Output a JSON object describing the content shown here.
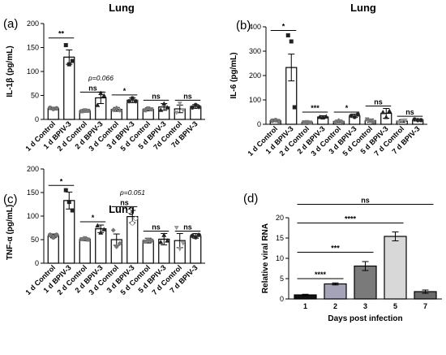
{
  "chart_data": [
    {
      "id": "a",
      "panel_label": "(a)",
      "type": "bar",
      "title": "Lung",
      "ylabel": "IL-1β (pg/mL)",
      "ylim": [
        0,
        200
      ],
      "yticks": [
        0,
        50,
        100,
        150,
        200
      ],
      "categories": [
        "1 d Control",
        "1 d BPIV-3",
        "2 d Control",
        "2 d BPIV-3",
        "3 d Control",
        "3 d BPIV-3",
        "5 d Control",
        "5 d BPIV-3",
        "7d Control",
        "7d BPIV-3"
      ],
      "values": [
        23,
        130,
        18,
        45,
        21,
        40,
        21,
        26,
        22,
        27
      ],
      "errors": [
        2,
        15,
        3,
        12,
        4,
        5,
        3,
        7,
        8,
        4
      ],
      "points": [
        [
          24,
          22,
          23
        ],
        [
          155,
          115,
          122
        ],
        [
          17,
          19,
          18
        ],
        [
          30,
          55,
          50
        ],
        [
          20,
          24,
          19
        ],
        [
          38,
          44,
          38
        ],
        [
          19,
          23,
          21
        ],
        [
          20,
          33,
          25
        ],
        [
          14,
          33,
          19
        ],
        [
          25,
          30,
          26
        ]
      ],
      "comparisons": [
        {
          "from": 0,
          "to": 1,
          "label": "**",
          "y": 170
        },
        {
          "from": 2,
          "to": 3,
          "label": "ns",
          "y": 57
        },
        {
          "from": 2,
          "to": 3,
          "label": "p=0.066",
          "y": 78
        },
        {
          "from": 4,
          "to": 5,
          "label": "*",
          "y": 51
        },
        {
          "from": 6,
          "to": 7,
          "label": "ns",
          "y": 40
        },
        {
          "from": 8,
          "to": 9,
          "label": "ns",
          "y": 40
        }
      ]
    },
    {
      "id": "b",
      "panel_label": "(b)",
      "type": "bar",
      "title": "Lung",
      "ylabel": "IL-6 (pg/mL)",
      "ylim": [
        0,
        400
      ],
      "yticks": [
        0,
        100,
        200,
        300,
        400
      ],
      "categories": [
        "1 d Control",
        "1 d BPIV-3",
        "2 d Control",
        "2 d BPIV-3",
        "3 d Control",
        "3 d BPIV-3",
        "5 d Control",
        "5 d BPIV-3",
        "7 d Control",
        "7 d BPIV-3"
      ],
      "values": [
        15,
        233,
        8,
        30,
        12,
        35,
        15,
        45,
        13,
        18
      ],
      "errors": [
        3,
        55,
        2,
        5,
        5,
        7,
        7,
        20,
        5,
        4
      ],
      "points": [
        [
          15,
          17,
          13
        ],
        [
          365,
          340,
          70
        ],
        [
          8,
          9,
          7
        ],
        [
          30,
          28,
          32
        ],
        [
          10,
          16,
          10
        ],
        [
          35,
          30,
          40
        ],
        [
          20,
          15,
          10
        ],
        [
          50,
          30,
          55
        ],
        [
          8,
          15,
          16
        ],
        [
          20,
          17,
          17
        ]
      ],
      "comparisons": [
        {
          "from": 0,
          "to": 1,
          "label": "*",
          "y": 385
        },
        {
          "from": 2,
          "to": 3,
          "label": "***",
          "y": 50
        },
        {
          "from": 4,
          "to": 5,
          "label": "*",
          "y": 50
        },
        {
          "from": 6,
          "to": 7,
          "label": "ns",
          "y": 75
        },
        {
          "from": 8,
          "to": 9,
          "label": "ns",
          "y": 33
        }
      ]
    },
    {
      "id": "c",
      "panel_label": "(c)",
      "type": "bar",
      "title": "Lung",
      "ylabel": "TNF-α (pg/mL)",
      "ylim": [
        0,
        200
      ],
      "yticks": [
        0,
        50,
        100,
        150,
        200
      ],
      "categories": [
        "1 d Control",
        "1 d BPIV-3",
        "2 d Control",
        "2 d BPIV-3",
        "3 d Control",
        "3 d BPIV-3",
        "5 d Control",
        "5 d BPIV-3",
        "7 d Control",
        "7 d BPIV-3"
      ],
      "values": [
        58,
        133,
        51,
        73,
        50,
        99,
        48,
        51,
        48,
        58
      ],
      "errors": [
        4,
        18,
        3,
        8,
        12,
        13,
        5,
        12,
        15,
        5
      ],
      "points": [
        [
          60,
          55,
          60
        ],
        [
          155,
          130,
          112
        ],
        [
          51,
          53,
          50
        ],
        [
          80,
          65,
          72
        ],
        [
          70,
          35,
          42
        ],
        [
          110,
          85,
          95
        ],
        [
          46,
          50,
          48
        ],
        [
          45,
          60,
          48
        ],
        [
          75,
          30,
          42
        ],
        [
          58,
          55,
          60
        ]
      ],
      "comparisons": [
        {
          "from": 0,
          "to": 1,
          "label": "*",
          "y": 165
        },
        {
          "from": 2,
          "to": 3,
          "label": "*",
          "y": 88
        },
        {
          "from": 4,
          "to": 5,
          "label": "ns",
          "y": 120
        },
        {
          "from": 4,
          "to": 5,
          "label": "p=0.051",
          "y": 141
        },
        {
          "from": 6,
          "to": 7,
          "label": "ns",
          "y": 68
        },
        {
          "from": 8,
          "to": 9,
          "label": "ns",
          "y": 68
        }
      ]
    },
    {
      "id": "d",
      "panel_label": "(d)",
      "type": "bar",
      "title": "",
      "xlabel": "Days post infection",
      "ylabel": "Relative viral RNA",
      "ylim": [
        0,
        20
      ],
      "yticks": [
        0,
        5,
        10,
        15,
        20
      ],
      "categories": [
        "1",
        "2",
        "3",
        "5",
        "7"
      ],
      "values": [
        1,
        3.7,
        8.1,
        15.4,
        1.8
      ],
      "errors": [
        0.15,
        0.25,
        1.1,
        1.1,
        0.4
      ],
      "colors": [
        "#111111",
        "#a5a3b8",
        "#7a7a7a",
        "#d8d8d8",
        "#6a6a6a"
      ],
      "comparisons": [
        {
          "from": 0,
          "to": 1,
          "label": "****",
          "y": 5
        },
        {
          "from": 0,
          "to": 2,
          "label": "***",
          "y": 11.5
        },
        {
          "from": 0,
          "to": 3,
          "label": "****",
          "y": 18.7
        },
        {
          "from": 0,
          "to": 4,
          "label": "ns",
          "y": 23.3
        }
      ]
    }
  ]
}
